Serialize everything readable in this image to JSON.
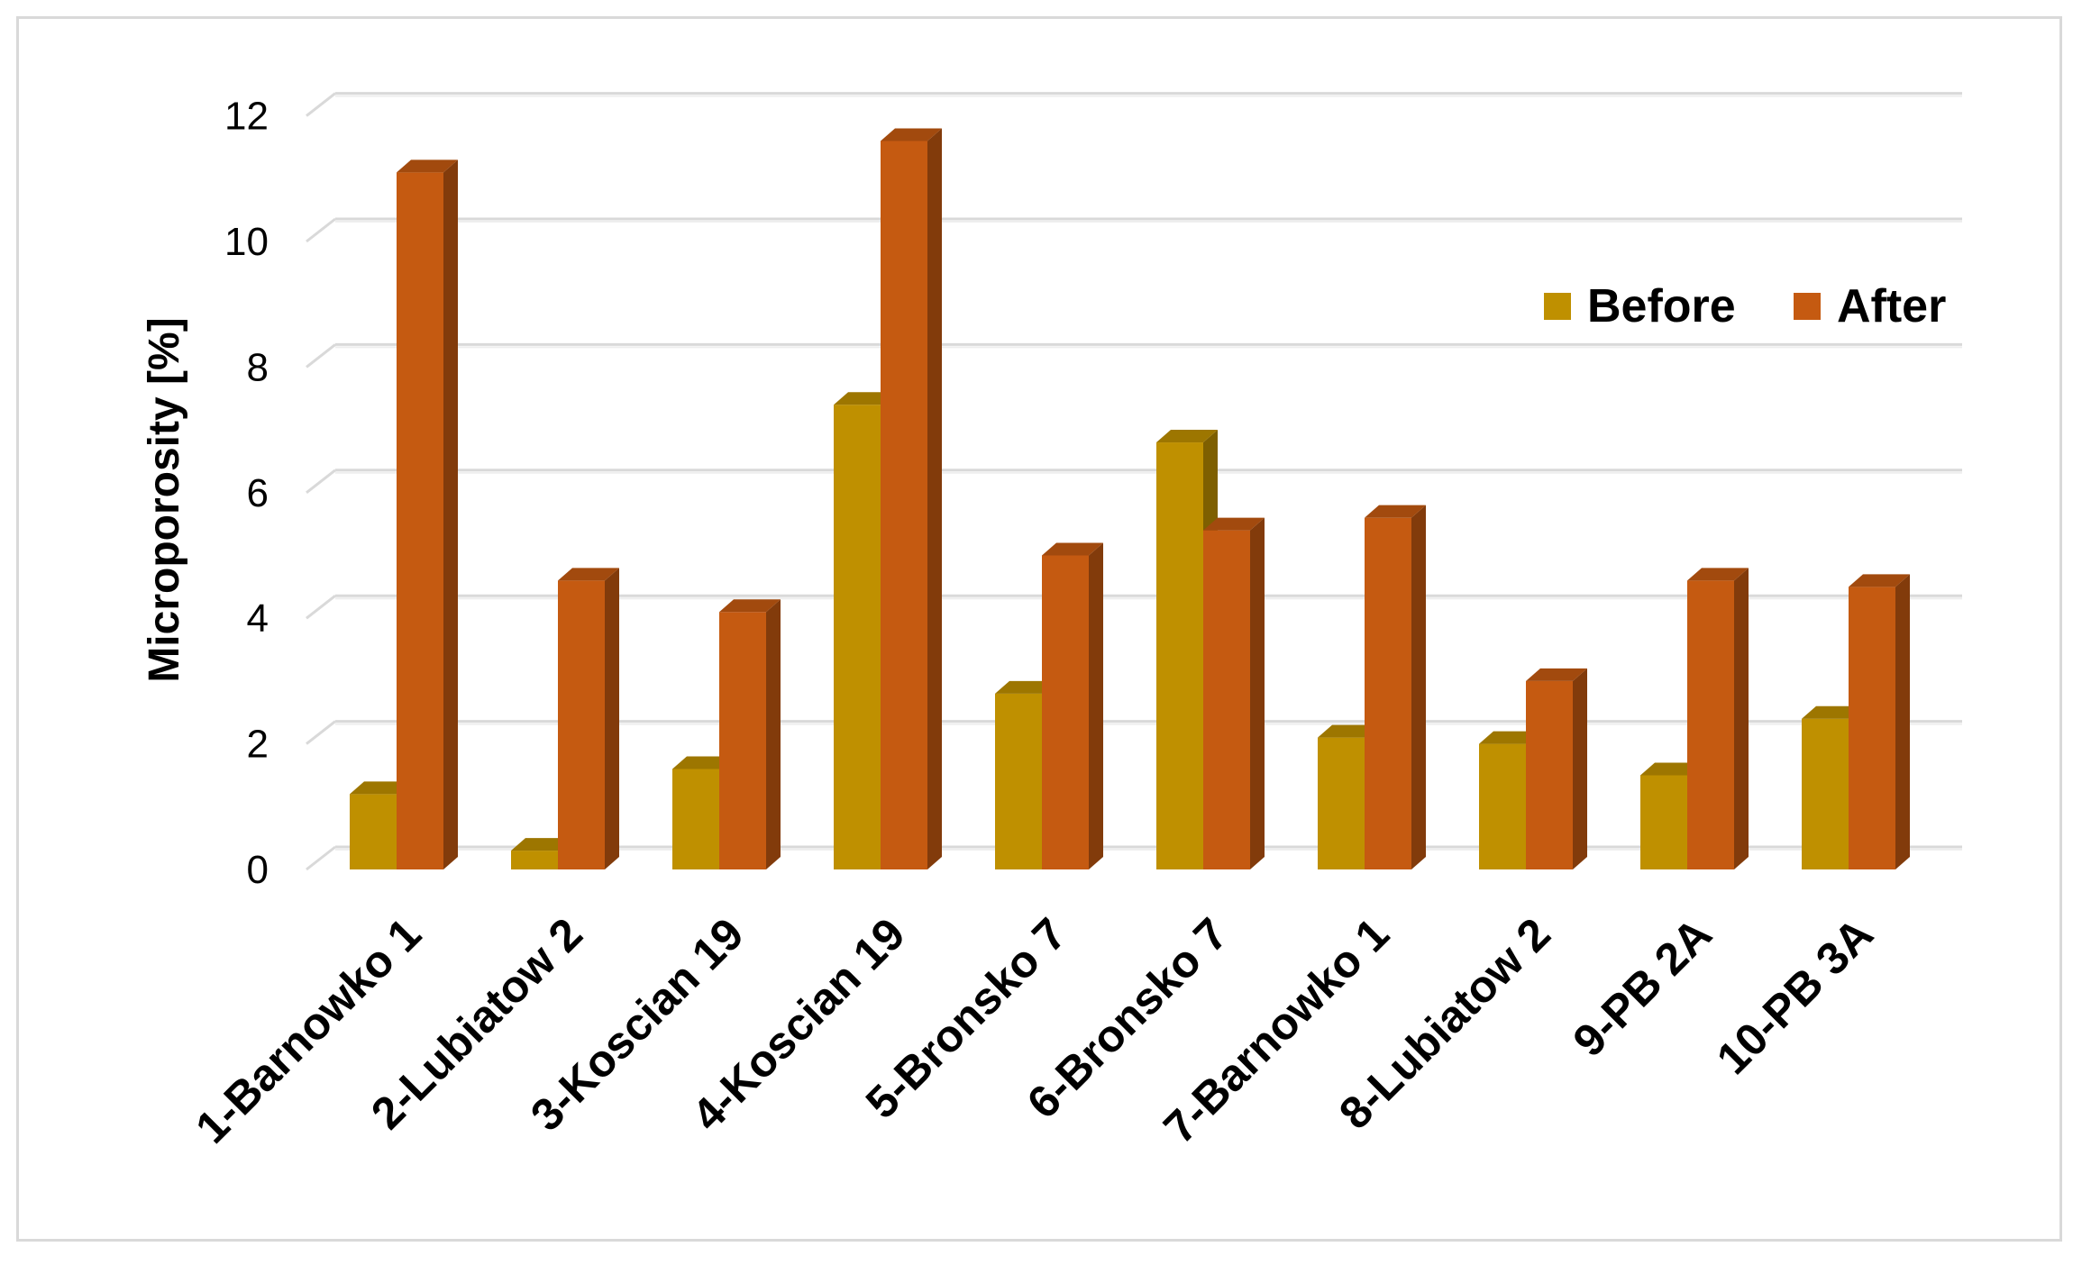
{
  "chart_data": {
    "type": "bar",
    "title": "",
    "xlabel": "",
    "ylabel": "Microporosity  [%]",
    "ylim": [
      0,
      12
    ],
    "yticks": [
      0,
      2,
      4,
      6,
      8,
      10,
      12
    ],
    "grid": true,
    "legend_position": "right",
    "style": "3d-clustered-column",
    "categories": [
      "1-Barnowko 1",
      "2-Lubiatow 2",
      "3-Koscian 19",
      "4-Koscian 19",
      "5-Bronsko 7",
      "6-Bronsko 7",
      "7-Barnowko 1",
      "8-Lubiatow 2",
      "9-PB 2A",
      "10-PB 3A"
    ],
    "series": [
      {
        "name": "Before",
        "color": "#bf9000",
        "values": [
          1.2,
          0.3,
          1.6,
          7.4,
          2.8,
          6.8,
          2.1,
          2.0,
          1.5,
          2.4
        ]
      },
      {
        "name": "After",
        "color": "#c55a11",
        "values": [
          11.1,
          4.6,
          4.1,
          11.6,
          5.0,
          5.4,
          5.6,
          3.0,
          4.6,
          4.5
        ]
      }
    ]
  }
}
